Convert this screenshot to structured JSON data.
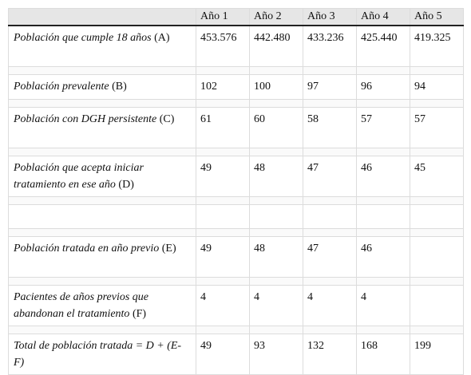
{
  "table": {
    "header": [
      "Año 1",
      "Año 2",
      "Año 3",
      "Año 4",
      "Año 5"
    ],
    "rows": [
      {
        "label": "Población que cumple 18 años",
        "note": "(A)",
        "values": [
          "453.576",
          "442.480",
          "433.236",
          "425.440",
          "419.325"
        ]
      },
      {
        "label": "Población prevalente",
        "note": "(B)",
        "values": [
          "102",
          "100",
          "97",
          "96",
          "94"
        ]
      },
      {
        "label": "Población con DGH persistente",
        "note": "(C)",
        "values": [
          "61",
          "60",
          "58",
          "57",
          "57"
        ]
      },
      {
        "label": "Población que acepta iniciar tratamiento en ese año",
        "note": "(D)",
        "values": [
          "49",
          "48",
          "47",
          "46",
          "45"
        ]
      },
      {
        "label": "Población tratada en año previo",
        "note": "(E)",
        "values": [
          "49",
          "48",
          "47",
          "46"
        ]
      },
      {
        "label": "Pacientes de años previos que abandonan el tratamiento",
        "note": "(F)",
        "values": [
          "4",
          "4",
          "4",
          "4"
        ]
      },
      {
        "label": "Total de población tratada = D + (E-F)",
        "values": [
          "49",
          "93",
          "132",
          "168",
          "199"
        ]
      }
    ]
  }
}
